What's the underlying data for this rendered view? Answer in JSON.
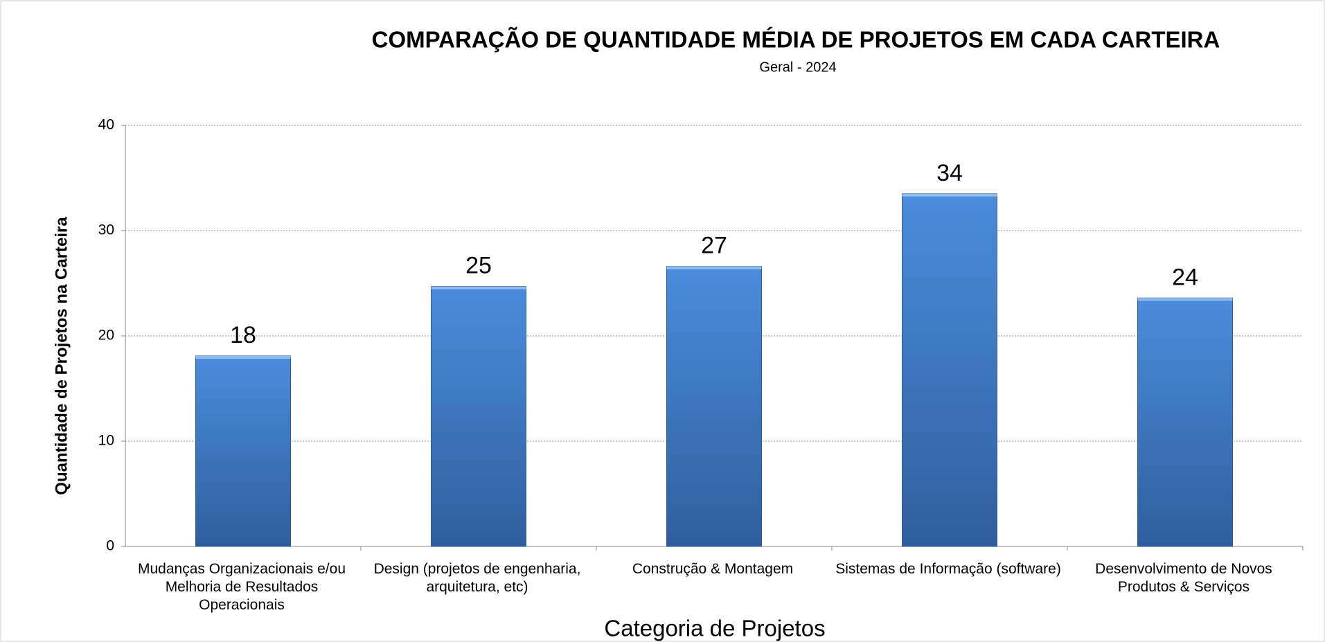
{
  "chart_data": {
    "type": "bar",
    "title": "COMPARAÇÃO DE QUANTIDADE MÉDIA DE PROJETOS EM CADA CARTEIRA",
    "subtitle": "Geral - 2024",
    "x_label": "Categoria  de Projetos",
    "y_label": "Quantidade de Projetos na Carteira",
    "categories": [
      "Mudanças Organizacionais e/ou Melhoria de Resultados Operacionais",
      "Design (projetos de engenharia, arquitetura, etc)",
      "Construção & Montagem",
      "Sistemas de Informação (software)",
      "Desenvolvimento de Novos Produtos & Serviços"
    ],
    "values": [
      18.1,
      24.7,
      26.6,
      33.5,
      23.6
    ],
    "value_labels": [
      "18",
      "25",
      "27",
      "34",
      "24"
    ],
    "color": "#3f7fcf",
    "ylim": [
      0,
      40
    ],
    "yticks": [
      0,
      10,
      20,
      30,
      40
    ],
    "grid": true
  }
}
